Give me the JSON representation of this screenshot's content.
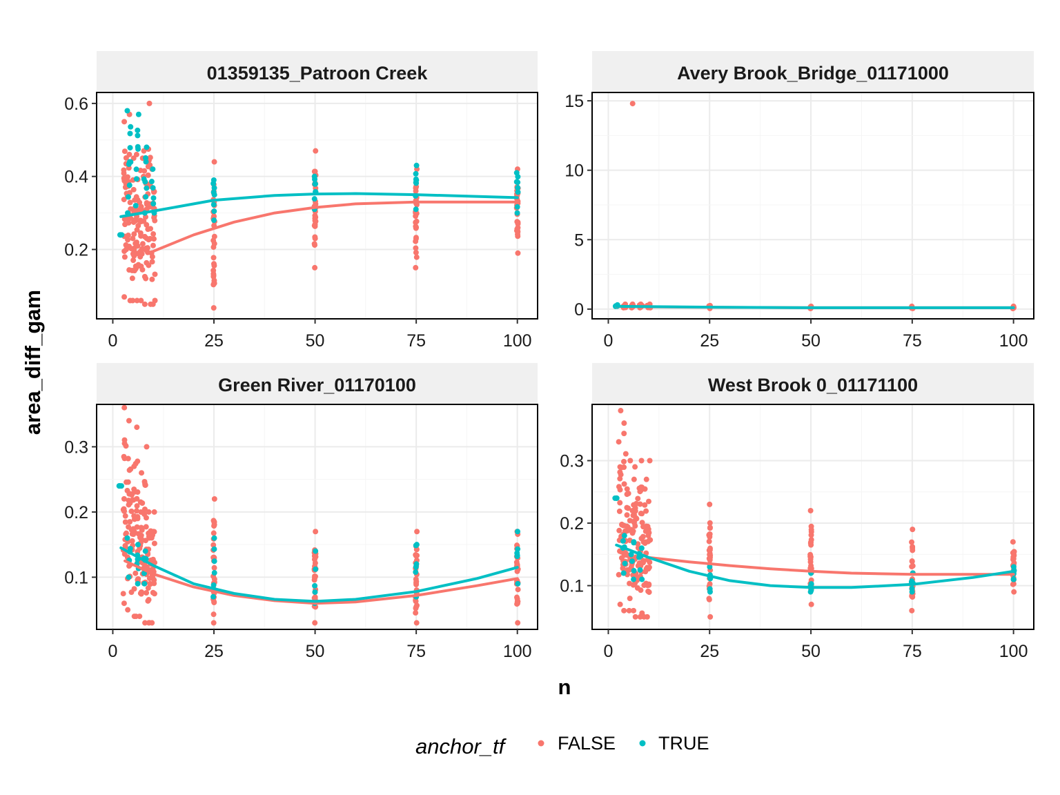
{
  "chart_data": {
    "type": "scatter",
    "facet_layout": "2x2",
    "xlabel": "n",
    "ylabel": "area_diff_gam",
    "legend": {
      "title": "anchor_tf",
      "position": "bottom",
      "entries": [
        {
          "label": "FALSE",
          "color": "#F8766D"
        },
        {
          "label": "TRUE",
          "color": "#00BFC4"
        }
      ]
    },
    "grid": true,
    "x_ticks": [
      "0",
      "25",
      "50",
      "75",
      "100"
    ],
    "x_tick_values": [
      0,
      25,
      50,
      75,
      100
    ],
    "xlim": [
      -4,
      105
    ],
    "panels": [
      {
        "strip": "01359135_Patroon Creek",
        "ylim": [
          0.01,
          0.63
        ],
        "y_tick_values": [
          0.2,
          0.4,
          0.6
        ],
        "y_ticks": [
          "0.2",
          "0.4",
          "0.6"
        ],
        "clusters": {
          "FALSE": [
            {
              "x": 3,
              "y_min": 0.07,
              "y_max": 0.55,
              "n": 22
            },
            {
              "x": 4,
              "y_min": 0.06,
              "y_max": 0.57,
              "n": 22
            },
            {
              "x": 5,
              "y_min": 0.06,
              "y_max": 0.45,
              "n": 20
            },
            {
              "x": 6,
              "y_min": 0.06,
              "y_max": 0.46,
              "n": 20
            },
            {
              "x": 7,
              "y_min": 0.06,
              "y_max": 0.45,
              "n": 20
            },
            {
              "x": 8,
              "y_min": 0.05,
              "y_max": 0.47,
              "n": 20
            },
            {
              "x": 9,
              "y_min": 0.05,
              "y_max": 0.6,
              "n": 20
            },
            {
              "x": 10,
              "y_min": 0.05,
              "y_max": 0.42,
              "n": 20
            },
            {
              "x": 25,
              "y_min": 0.04,
              "y_max": 0.44,
              "n": 30
            },
            {
              "x": 50,
              "y_min": 0.15,
              "y_max": 0.47,
              "n": 30
            },
            {
              "x": 75,
              "y_min": 0.15,
              "y_max": 0.42,
              "n": 30
            },
            {
              "x": 100,
              "y_min": 0.19,
              "y_max": 0.42,
              "n": 30
            }
          ],
          "TRUE": [
            {
              "x": 2,
              "y_min": 0.24,
              "y_max": 0.24,
              "n": 4
            },
            {
              "x": 4,
              "y_min": 0.3,
              "y_max": 0.58,
              "n": 10
            },
            {
              "x": 6,
              "y_min": 0.32,
              "y_max": 0.57,
              "n": 8
            },
            {
              "x": 8,
              "y_min": 0.3,
              "y_max": 0.48,
              "n": 8
            },
            {
              "x": 10,
              "y_min": 0.3,
              "y_max": 0.42,
              "n": 6
            },
            {
              "x": 25,
              "y_min": 0.28,
              "y_max": 0.39,
              "n": 8
            },
            {
              "x": 50,
              "y_min": 0.31,
              "y_max": 0.4,
              "n": 8
            },
            {
              "x": 75,
              "y_min": 0.31,
              "y_max": 0.43,
              "n": 8
            },
            {
              "x": 100,
              "y_min": 0.3,
              "y_max": 0.41,
              "n": 8
            }
          ]
        },
        "smooth": {
          "FALSE": {
            "x": [
              10,
              20,
              30,
              40,
              50,
              60,
              75,
              100
            ],
            "y": [
              0.195,
              0.24,
              0.275,
              0.3,
              0.315,
              0.325,
              0.33,
              0.33
            ]
          },
          "TRUE": {
            "x": [
              2,
              10,
              25,
              40,
              50,
              60,
              75,
              100
            ],
            "y": [
              0.29,
              0.305,
              0.335,
              0.348,
              0.352,
              0.353,
              0.35,
              0.342
            ]
          }
        }
      },
      {
        "strip": "Avery Brook_Bridge_01171000",
        "ylim": [
          -0.7,
          15.6
        ],
        "y_tick_values": [
          0,
          5,
          10,
          15
        ],
        "y_ticks": [
          "0",
          "5",
          "10",
          "15"
        ],
        "clusters": {
          "FALSE": [
            {
              "x": 4,
              "y_min": 0.1,
              "y_max": 0.35,
              "n": 6
            },
            {
              "x": 6,
              "y_min": 0.1,
              "y_max": 0.35,
              "n": 6
            },
            {
              "x": 8,
              "y_min": 0.1,
              "y_max": 0.35,
              "n": 6
            },
            {
              "x": 10,
              "y_min": 0.1,
              "y_max": 0.35,
              "n": 6
            },
            {
              "x": 25,
              "y_min": 0.05,
              "y_max": 0.25,
              "n": 5
            },
            {
              "x": 50,
              "y_min": 0.05,
              "y_max": 0.2,
              "n": 5
            },
            {
              "x": 75,
              "y_min": 0.05,
              "y_max": 0.2,
              "n": 5
            },
            {
              "x": 100,
              "y_min": 0.05,
              "y_max": 0.2,
              "n": 5
            }
          ],
          "TRUE": [
            {
              "x": 2,
              "y_min": 0.2,
              "y_max": 0.3,
              "n": 4
            }
          ]
        },
        "outliers": {
          "FALSE": [
            {
              "x": 6,
              "y": 14.8
            }
          ]
        },
        "smooth": {
          "FALSE": {
            "x": [
              2,
              25,
              50,
              75,
              100
            ],
            "y": [
              0.18,
              0.13,
              0.1,
              0.1,
              0.1
            ]
          },
          "TRUE": {
            "x": [
              2,
              25,
              50,
              75,
              100
            ],
            "y": [
              0.2,
              0.14,
              0.1,
              0.1,
              0.1
            ]
          }
        }
      },
      {
        "strip": "Green River_01170100",
        "ylim": [
          0.02,
          0.365
        ],
        "y_tick_values": [
          0.1,
          0.2,
          0.3
        ],
        "y_ticks": [
          "0.1",
          "0.2",
          "0.3"
        ],
        "clusters": {
          "FALSE": [
            {
              "x": 3,
              "y_min": 0.06,
              "y_max": 0.36,
              "n": 22
            },
            {
              "x": 4,
              "y_min": 0.05,
              "y_max": 0.34,
              "n": 22
            },
            {
              "x": 5,
              "y_min": 0.04,
              "y_max": 0.27,
              "n": 20
            },
            {
              "x": 6,
              "y_min": 0.04,
              "y_max": 0.33,
              "n": 20
            },
            {
              "x": 7,
              "y_min": 0.04,
              "y_max": 0.26,
              "n": 20
            },
            {
              "x": 8,
              "y_min": 0.03,
              "y_max": 0.3,
              "n": 20
            },
            {
              "x": 9,
              "y_min": 0.03,
              "y_max": 0.2,
              "n": 20
            },
            {
              "x": 10,
              "y_min": 0.03,
              "y_max": 0.2,
              "n": 20
            },
            {
              "x": 25,
              "y_min": 0.03,
              "y_max": 0.22,
              "n": 30
            },
            {
              "x": 50,
              "y_min": 0.03,
              "y_max": 0.17,
              "n": 30
            },
            {
              "x": 75,
              "y_min": 0.03,
              "y_max": 0.17,
              "n": 30
            },
            {
              "x": 100,
              "y_min": 0.03,
              "y_max": 0.17,
              "n": 30
            }
          ],
          "TRUE": [
            {
              "x": 2,
              "y_min": 0.24,
              "y_max": 0.24,
              "n": 4
            },
            {
              "x": 4,
              "y_min": 0.1,
              "y_max": 0.16,
              "n": 6
            },
            {
              "x": 6,
              "y_min": 0.09,
              "y_max": 0.15,
              "n": 6
            },
            {
              "x": 8,
              "y_min": 0.09,
              "y_max": 0.14,
              "n": 6
            },
            {
              "x": 25,
              "y_min": 0.07,
              "y_max": 0.16,
              "n": 6
            },
            {
              "x": 50,
              "y_min": 0.06,
              "y_max": 0.14,
              "n": 6
            },
            {
              "x": 75,
              "y_min": 0.07,
              "y_max": 0.15,
              "n": 6
            },
            {
              "x": 100,
              "y_min": 0.09,
              "y_max": 0.17,
              "n": 6
            }
          ]
        },
        "smooth": {
          "FALSE": {
            "x": [
              3,
              10,
              20,
              30,
              40,
              50,
              60,
              75,
              90,
              100
            ],
            "y": [
              0.125,
              0.105,
              0.085,
              0.072,
              0.064,
              0.06,
              0.062,
              0.072,
              0.087,
              0.098
            ]
          },
          "TRUE": {
            "x": [
              2,
              10,
              20,
              30,
              40,
              50,
              60,
              75,
              90,
              100
            ],
            "y": [
              0.145,
              0.118,
              0.09,
              0.075,
              0.066,
              0.063,
              0.066,
              0.078,
              0.098,
              0.115
            ]
          }
        }
      },
      {
        "strip": "West Brook 0_01171100",
        "ylim": [
          0.03,
          0.39
        ],
        "y_tick_values": [
          0.1,
          0.2,
          0.3
        ],
        "y_ticks": [
          "0.1",
          "0.2",
          "0.3"
        ],
        "clusters": {
          "FALSE": [
            {
              "x": 3,
              "y_min": 0.07,
              "y_max": 0.38,
              "n": 22
            },
            {
              "x": 4,
              "y_min": 0.06,
              "y_max": 0.36,
              "n": 22
            },
            {
              "x": 5,
              "y_min": 0.06,
              "y_max": 0.3,
              "n": 20
            },
            {
              "x": 6,
              "y_min": 0.06,
              "y_max": 0.27,
              "n": 20
            },
            {
              "x": 7,
              "y_min": 0.05,
              "y_max": 0.29,
              "n": 20
            },
            {
              "x": 8,
              "y_min": 0.05,
              "y_max": 0.3,
              "n": 20
            },
            {
              "x": 9,
              "y_min": 0.05,
              "y_max": 0.27,
              "n": 20
            },
            {
              "x": 10,
              "y_min": 0.05,
              "y_max": 0.3,
              "n": 20
            },
            {
              "x": 25,
              "y_min": 0.05,
              "y_max": 0.23,
              "n": 30
            },
            {
              "x": 50,
              "y_min": 0.07,
              "y_max": 0.22,
              "n": 30
            },
            {
              "x": 75,
              "y_min": 0.06,
              "y_max": 0.19,
              "n": 25
            },
            {
              "x": 100,
              "y_min": 0.09,
              "y_max": 0.17,
              "n": 25
            }
          ],
          "TRUE": [
            {
              "x": 2,
              "y_min": 0.24,
              "y_max": 0.24,
              "n": 4
            },
            {
              "x": 4,
              "y_min": 0.12,
              "y_max": 0.18,
              "n": 6
            },
            {
              "x": 6,
              "y_min": 0.11,
              "y_max": 0.17,
              "n": 6
            },
            {
              "x": 8,
              "y_min": 0.11,
              "y_max": 0.16,
              "n": 6
            },
            {
              "x": 25,
              "y_min": 0.09,
              "y_max": 0.13,
              "n": 6
            },
            {
              "x": 50,
              "y_min": 0.09,
              "y_max": 0.12,
              "n": 6
            },
            {
              "x": 75,
              "y_min": 0.09,
              "y_max": 0.12,
              "n": 6
            },
            {
              "x": 100,
              "y_min": 0.11,
              "y_max": 0.13,
              "n": 6
            }
          ]
        },
        "smooth": {
          "FALSE": {
            "x": [
              10,
              20,
              30,
              40,
              50,
              60,
              75,
              90,
              100
            ],
            "y": [
              0.145,
              0.138,
              0.132,
              0.127,
              0.123,
              0.12,
              0.118,
              0.118,
              0.118
            ]
          },
          "TRUE": {
            "x": [
              2,
              10,
              20,
              30,
              40,
              50,
              60,
              75,
              90,
              100
            ],
            "y": [
              0.165,
              0.145,
              0.123,
              0.108,
              0.1,
              0.097,
              0.097,
              0.102,
              0.113,
              0.123
            ]
          }
        }
      }
    ]
  }
}
